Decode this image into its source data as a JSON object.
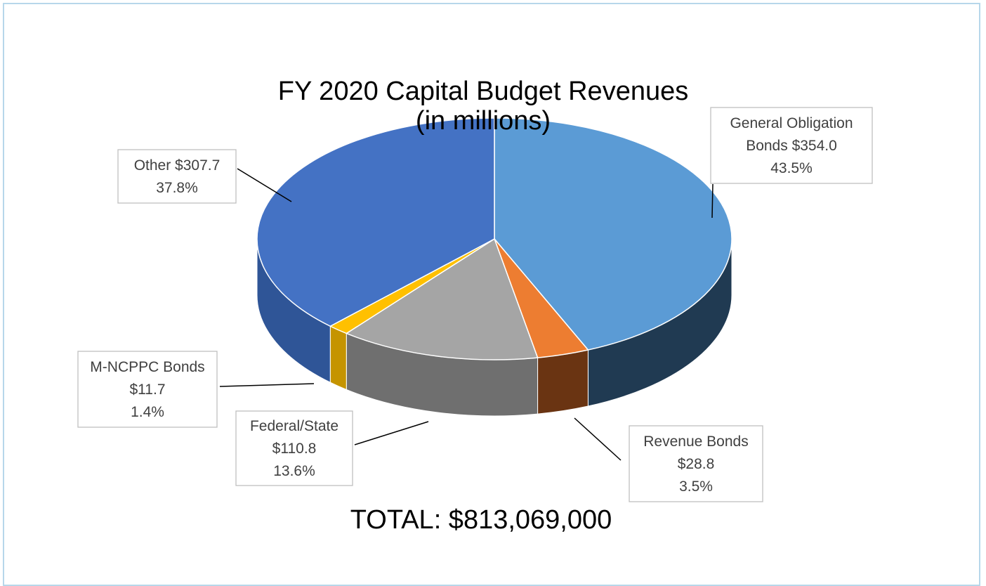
{
  "chart_data": {
    "type": "pie",
    "title": "FY 2020 Capital Budget Revenues",
    "subtitle": "(in millions)",
    "total_label": "TOTAL:  $813,069,000",
    "three_d": true,
    "slices": [
      {
        "name": "General Obligation Bonds",
        "value": 354.0,
        "percent": 43.5,
        "label_lines": [
          "General Obligation",
          "Bonds  $354.0",
          "43.5%"
        ],
        "color": "#5b9bd5",
        "side": "#203a52"
      },
      {
        "name": "Revenue Bonds",
        "value": 28.8,
        "percent": 3.5,
        "label_lines": [
          "Revenue Bonds",
          "$28.8",
          "3.5%"
        ],
        "color": "#ed7d31",
        "side": "#6a3412"
      },
      {
        "name": "Federal/State",
        "value": 110.8,
        "percent": 13.6,
        "label_lines": [
          "Federal/State",
          "$110.8",
          "13.6%"
        ],
        "color": "#a5a5a5",
        "side": "#6f6f6f"
      },
      {
        "name": "M-NCPPC Bonds",
        "value": 11.7,
        "percent": 1.4,
        "label_lines": [
          "M-NCPPC Bonds",
          "$11.7",
          "1.4%"
        ],
        "color": "#ffc000",
        "side": "#c59400"
      },
      {
        "name": "Other",
        "value": 307.7,
        "percent": 37.8,
        "label_lines": [
          "Other  $307.7",
          "37.8%"
        ],
        "color": "#4472c4",
        "side": "#2f5597"
      }
    ]
  }
}
